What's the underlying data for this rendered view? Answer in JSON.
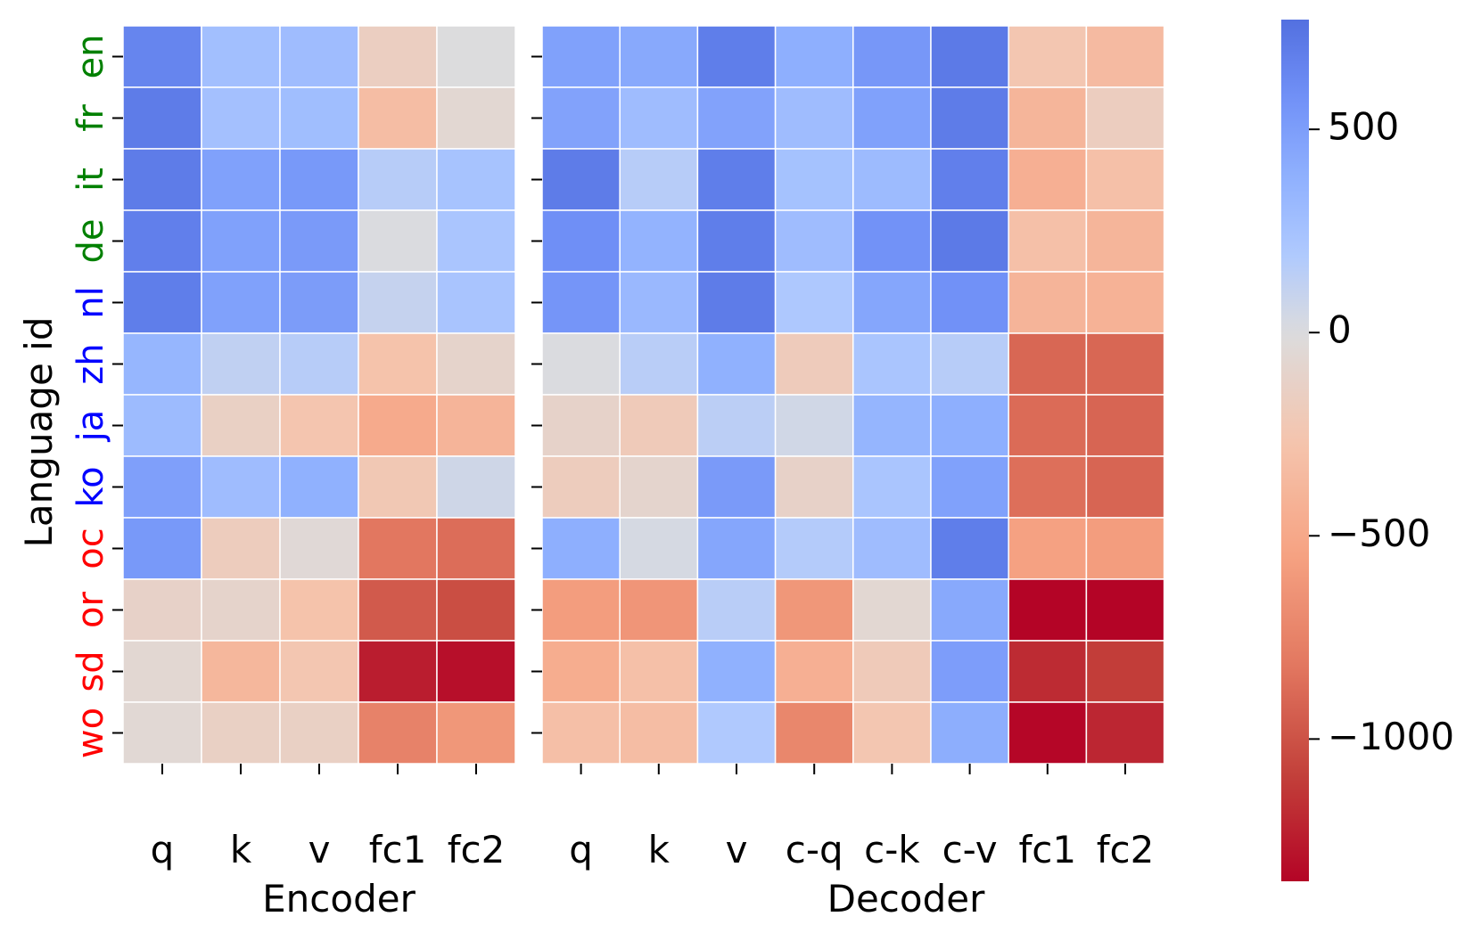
{
  "chart_data": [
    {
      "type": "heatmap",
      "panel": "encoder",
      "xlabel": "Encoder",
      "ylabel": "Language id",
      "rows": [
        "en",
        "fr",
        "it",
        "de",
        "nl",
        "zh",
        "ja",
        "ko",
        "oc",
        "or",
        "sd",
        "wo"
      ],
      "row_colors": [
        "#008000",
        "#008000",
        "#008000",
        "#008000",
        "#0000ff",
        "#0000ff",
        "#0000ff",
        "#0000ff",
        "#ff0000",
        "#ff0000",
        "#ff0000",
        "#ff0000"
      ],
      "columns": [
        "q",
        "k",
        "v",
        "fc1",
        "fc2"
      ],
      "values": [
        [
          650,
          270,
          290,
          -160,
          0
        ],
        [
          700,
          260,
          280,
          -330,
          -60
        ],
        [
          700,
          480,
          530,
          160,
          240
        ],
        [
          680,
          480,
          520,
          10,
          220
        ],
        [
          690,
          480,
          510,
          100,
          230
        ],
        [
          340,
          120,
          160,
          -280,
          -100
        ],
        [
          300,
          -140,
          -260,
          -480,
          -400
        ],
        [
          490,
          290,
          380,
          -230,
          60
        ],
        [
          530,
          -180,
          -40,
          -820,
          -870
        ],
        [
          -120,
          -100,
          -280,
          -960,
          -1020
        ],
        [
          -60,
          -380,
          -250,
          -1240,
          -1300
        ],
        [
          -50,
          -140,
          -140,
          -750,
          -620
        ]
      ]
    },
    {
      "type": "heatmap",
      "panel": "decoder",
      "xlabel": "Decoder",
      "rows": [
        "en",
        "fr",
        "it",
        "de",
        "nl",
        "zh",
        "ja",
        "ko",
        "oc",
        "or",
        "sd",
        "wo"
      ],
      "columns": [
        "q",
        "k",
        "v",
        "c-q",
        "c-k",
        "c-v",
        "fc1",
        "fc2"
      ],
      "values": [
        [
          480,
          430,
          690,
          390,
          540,
          710,
          -250,
          -350
        ],
        [
          470,
          290,
          470,
          290,
          480,
          700,
          -390,
          -170
        ],
        [
          700,
          160,
          690,
          250,
          300,
          680,
          -440,
          -300
        ],
        [
          590,
          360,
          690,
          290,
          570,
          710,
          -300,
          -390
        ],
        [
          550,
          320,
          700,
          200,
          450,
          580,
          -400,
          -420
        ],
        [
          10,
          150,
          380,
          -190,
          220,
          160,
          -900,
          -900
        ],
        [
          -110,
          -200,
          140,
          50,
          350,
          390,
          -880,
          -910
        ],
        [
          -180,
          -90,
          520,
          -120,
          220,
          480,
          -860,
          -910
        ],
        [
          390,
          30,
          450,
          170,
          290,
          690,
          -550,
          -580
        ],
        [
          -580,
          -630,
          150,
          -620,
          -60,
          430,
          -1350,
          -1350
        ],
        [
          -460,
          -300,
          380,
          -440,
          -200,
          500,
          -1180,
          -1100
        ],
        [
          -310,
          -330,
          190,
          -720,
          -250,
          400,
          -1340,
          -1200
        ]
      ]
    }
  ],
  "colorbar": {
    "min": -1350,
    "max": 770,
    "ticks": [
      500,
      0,
      -500,
      -1000
    ],
    "tick_labels": [
      "500",
      "0",
      "−500",
      "−1000"
    ],
    "colormap": "coolwarm"
  }
}
